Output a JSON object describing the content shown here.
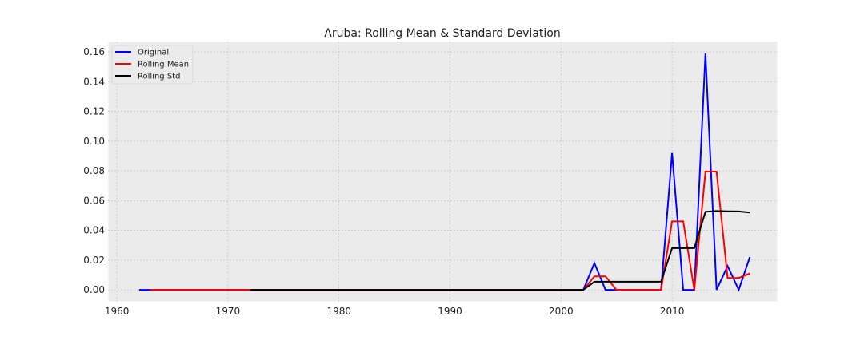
{
  "chart_data": {
    "type": "line",
    "title": "Aruba: Rolling Mean & Standard Deviation",
    "xlabel": "",
    "ylabel": "",
    "xlim": [
      1959.2,
      2019.5
    ],
    "ylim": [
      -0.008,
      0.167
    ],
    "xticks": [
      1960,
      1970,
      1980,
      1990,
      2000,
      2010
    ],
    "yticks": [
      0.0,
      0.02,
      0.04,
      0.06,
      0.08,
      0.1,
      0.12,
      0.14,
      0.16
    ],
    "ytick_labels": [
      "0.00",
      "0.02",
      "0.04",
      "0.06",
      "0.08",
      "0.10",
      "0.12",
      "0.14",
      "0.16"
    ],
    "grid": true,
    "legend_position": "top-left",
    "background": "#ebebeb",
    "series": [
      {
        "name": "Original",
        "color": "#0000ff",
        "x": [
          1962,
          1963,
          1964,
          1965,
          1966,
          1967,
          1968,
          1969,
          1970,
          1971,
          1972,
          1973,
          1974,
          1975,
          1976,
          1977,
          1978,
          1979,
          1980,
          1981,
          1982,
          1983,
          1984,
          1985,
          1986,
          1987,
          1988,
          1989,
          1990,
          1991,
          1992,
          1993,
          1994,
          1995,
          1996,
          1997,
          1998,
          1999,
          2000,
          2001,
          2002,
          2003,
          2004,
          2005,
          2006,
          2007,
          2008,
          2009,
          2010,
          2011,
          2012,
          2013,
          2014,
          2015,
          2016,
          2017
        ],
        "y": [
          0,
          0,
          0,
          0,
          0,
          0,
          0,
          0,
          0,
          0,
          0,
          0,
          0,
          0,
          0,
          0,
          0,
          0,
          0,
          0,
          0,
          0,
          0,
          0,
          0,
          0,
          0,
          0,
          0,
          0,
          0,
          0,
          0,
          0,
          0,
          0,
          0,
          0,
          0,
          0,
          0,
          0.018,
          0,
          0,
          0,
          0,
          0,
          0,
          0.092,
          0,
          0,
          0.159,
          0,
          0.016,
          0,
          0.022
        ]
      },
      {
        "name": "Rolling Mean",
        "color": "#ff0000",
        "x": [
          1963,
          1964,
          1965,
          1966,
          1967,
          1968,
          1969,
          1970,
          1971,
          1972,
          1973,
          1974,
          1975,
          1976,
          1977,
          1978,
          1979,
          1980,
          1981,
          1982,
          1983,
          1984,
          1985,
          1986,
          1987,
          1988,
          1989,
          1990,
          1991,
          1992,
          1993,
          1994,
          1995,
          1996,
          1997,
          1998,
          1999,
          2000,
          2001,
          2002,
          2003,
          2004,
          2005,
          2006,
          2007,
          2008,
          2009,
          2010,
          2011,
          2012,
          2013,
          2014,
          2015,
          2016,
          2017
        ],
        "y": [
          0,
          0,
          0,
          0,
          0,
          0,
          0,
          0,
          0,
          0,
          0,
          0,
          0,
          0,
          0,
          0,
          0,
          0,
          0,
          0,
          0,
          0,
          0,
          0,
          0,
          0,
          0,
          0,
          0,
          0,
          0,
          0,
          0,
          0,
          0,
          0,
          0,
          0,
          0,
          0,
          0.009,
          0.009,
          0,
          0,
          0,
          0,
          0,
          0.046,
          0.046,
          0,
          0.0795,
          0.0795,
          0.008,
          0.008,
          0.011
        ]
      },
      {
        "name": "Rolling Std",
        "color": "#000000",
        "x": [
          1972,
          1973,
          1974,
          1975,
          1976,
          1977,
          1978,
          1979,
          1980,
          1981,
          1982,
          1983,
          1984,
          1985,
          1986,
          1987,
          1988,
          1989,
          1990,
          1991,
          1992,
          1993,
          1994,
          1995,
          1996,
          1997,
          1998,
          1999,
          2000,
          2001,
          2002,
          2003,
          2004,
          2005,
          2006,
          2007,
          2008,
          2009,
          2010,
          2011,
          2012,
          2013,
          2014,
          2015,
          2016,
          2017
        ],
        "y": [
          0,
          0,
          0,
          0,
          0,
          0,
          0,
          0,
          0,
          0,
          0,
          0,
          0,
          0,
          0,
          0,
          0,
          0,
          0,
          0,
          0,
          0,
          0,
          0,
          0,
          0,
          0,
          0,
          0,
          0,
          0,
          0.0055,
          0.0055,
          0.0055,
          0.0055,
          0.0055,
          0.0055,
          0.0055,
          0.028,
          0.028,
          0.028,
          0.0525,
          0.053,
          0.0528,
          0.0527,
          0.052
        ]
      }
    ]
  }
}
